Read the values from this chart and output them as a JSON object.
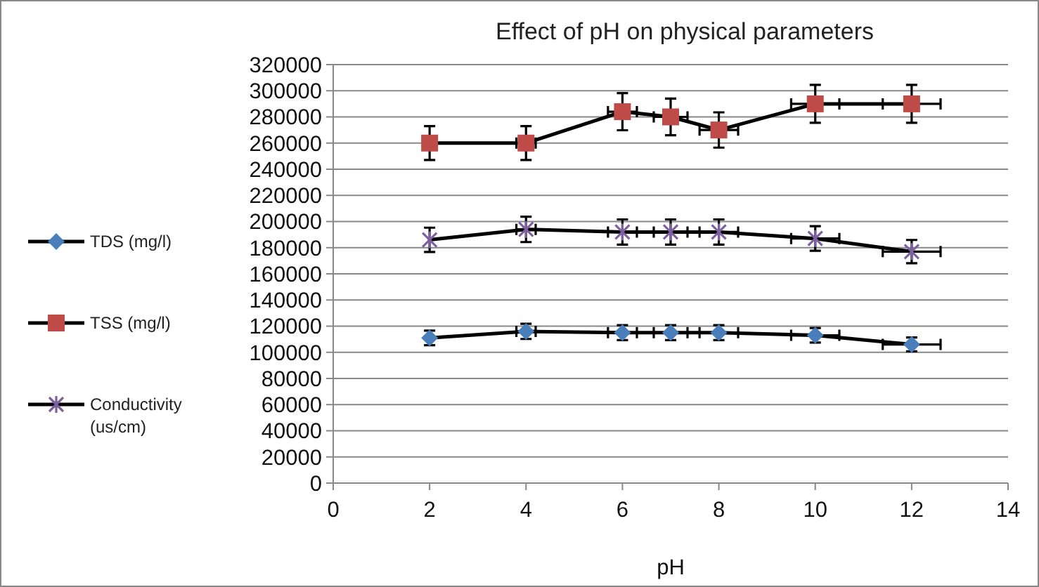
{
  "chart_data": {
    "type": "line",
    "title": "Effect of pH on physical parameters",
    "xlabel": "pH",
    "x": [
      2,
      4,
      6,
      7,
      8,
      10,
      12
    ],
    "series": [
      {
        "name": "TDS (mg/l)",
        "color": "#4a7ebb",
        "marker": "diamond",
        "values": [
          111000,
          116000,
          115000,
          115000,
          115000,
          113000,
          106000
        ],
        "errors": [
          5600,
          5800,
          5700,
          5700,
          5700,
          5600,
          5300
        ],
        "xerrors": [
          null,
          0.2,
          0.3,
          0.35,
          0.4,
          0.5,
          0.6
        ]
      },
      {
        "name": "TSS (mg/l)",
        "color": "#be4b48",
        "marker": "square",
        "values": [
          260000,
          260000,
          284000,
          280000,
          270000,
          290000,
          290000
        ],
        "errors": [
          13000,
          13000,
          14200,
          14000,
          13500,
          14500,
          14500
        ],
        "xerrors": [
          null,
          0.2,
          0.3,
          0.35,
          0.4,
          0.5,
          0.6
        ]
      },
      {
        "name": "Conductivity (us/cm)",
        "color": "#7d60a0",
        "marker": "cross",
        "values": [
          186000,
          194000,
          192000,
          192000,
          192000,
          187000,
          177000
        ],
        "errors": [
          9300,
          9700,
          9600,
          9600,
          9600,
          9400,
          8900
        ],
        "xerrors": [
          null,
          0.2,
          0.3,
          0.35,
          0.4,
          0.5,
          0.6
        ]
      }
    ],
    "xlim": [
      0,
      14
    ],
    "xticks": [
      0,
      2,
      4,
      6,
      8,
      10,
      12,
      14
    ],
    "ylim": [
      0,
      320000
    ],
    "yticks": [
      0,
      20000,
      40000,
      60000,
      80000,
      100000,
      120000,
      140000,
      160000,
      180000,
      200000,
      220000,
      240000,
      260000,
      280000,
      300000,
      320000
    ],
    "grid": "y",
    "legend": "left"
  }
}
